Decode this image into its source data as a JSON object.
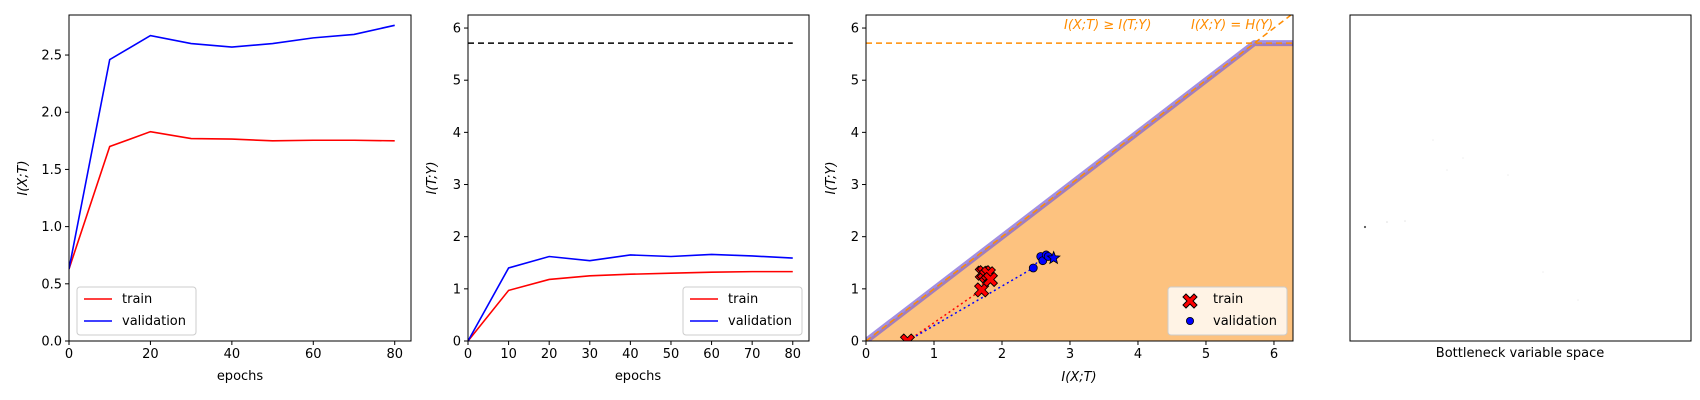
{
  "colors": {
    "train": "#ff0000",
    "validation": "#0000ff",
    "entropy": "#000000",
    "orange_line": "#ff8c00",
    "feasible_fill": "#fdc27f",
    "bound_line": "#7b5fd6"
  },
  "chart_data": [
    {
      "type": "line",
      "xlabel": "epochs",
      "ylabel": "I(X;T)",
      "xlim": [
        0,
        84
      ],
      "ylim": [
        0,
        2.85
      ],
      "xticks": [
        "0",
        "20",
        "40",
        "60",
        "80"
      ],
      "yticks": [
        "0.0",
        "0.5",
        "1.0",
        "1.5",
        "2.0",
        "2.5"
      ],
      "legend": "lower-left",
      "series": [
        {
          "name": "train",
          "x": [
            0,
            10,
            20,
            30,
            40,
            50,
            60,
            70,
            80
          ],
          "values": [
            0.63,
            1.7,
            1.83,
            1.77,
            1.765,
            1.75,
            1.755,
            1.755,
            1.75
          ]
        },
        {
          "name": "validation",
          "x": [
            0,
            10,
            20,
            30,
            40,
            50,
            60,
            70,
            80
          ],
          "values": [
            0.63,
            2.46,
            2.67,
            2.6,
            2.57,
            2.6,
            2.65,
            2.68,
            2.76
          ]
        }
      ]
    },
    {
      "type": "line",
      "xlabel": "epochs",
      "ylabel": "I(T;Y)",
      "xlim": [
        0,
        84
      ],
      "ylim": [
        0,
        6.25
      ],
      "xticks": [
        "0",
        "10",
        "20",
        "30",
        "40",
        "50",
        "60",
        "70",
        "80"
      ],
      "yticks": [
        "0",
        "1",
        "2",
        "3",
        "4",
        "5",
        "6"
      ],
      "legend": "lower-right",
      "reference_y": 5.71,
      "series": [
        {
          "name": "train",
          "x": [
            0,
            10,
            20,
            30,
            40,
            50,
            60,
            70,
            80
          ],
          "values": [
            0.0,
            0.97,
            1.18,
            1.25,
            1.28,
            1.3,
            1.32,
            1.33,
            1.33
          ]
        },
        {
          "name": "validation",
          "x": [
            0,
            10,
            20,
            30,
            40,
            50,
            60,
            70,
            80
          ],
          "values": [
            0.0,
            1.4,
            1.62,
            1.54,
            1.65,
            1.62,
            1.66,
            1.63,
            1.59
          ]
        }
      ]
    },
    {
      "type": "scatter",
      "xlabel": "I(X;T)",
      "ylabel": "I(T;Y)",
      "xlim": [
        0,
        6.28
      ],
      "ylim": [
        0,
        6.25
      ],
      "xticks": [
        "0",
        "1",
        "2",
        "3",
        "4",
        "5",
        "6"
      ],
      "yticks": [
        "0",
        "1",
        "2",
        "3",
        "4",
        "5",
        "6"
      ],
      "legend": "lower-right",
      "H_Y": 5.71,
      "annotations": [
        "I(X;T) ≥ I(T;Y)",
        "I(X;Y) = H(Y)"
      ],
      "series": [
        {
          "name": "train",
          "marker": "X",
          "x": [
            0.61,
            1.7,
            1.71,
            1.74,
            1.77,
            1.8,
            1.83
          ],
          "values": [
            0.0,
            0.98,
            1.3,
            1.31,
            1.25,
            1.29,
            1.18
          ]
        },
        {
          "name": "validation",
          "marker": "o",
          "x": [
            0.61,
            2.46,
            2.57,
            2.6,
            2.65,
            2.68
          ],
          "values": [
            0.0,
            1.4,
            1.62,
            1.54,
            1.65,
            1.62
          ],
          "final": [
            2.76,
            1.59
          ]
        }
      ]
    },
    {
      "type": "scatter",
      "xlabel": "Bottleneck variable space"
    }
  ]
}
